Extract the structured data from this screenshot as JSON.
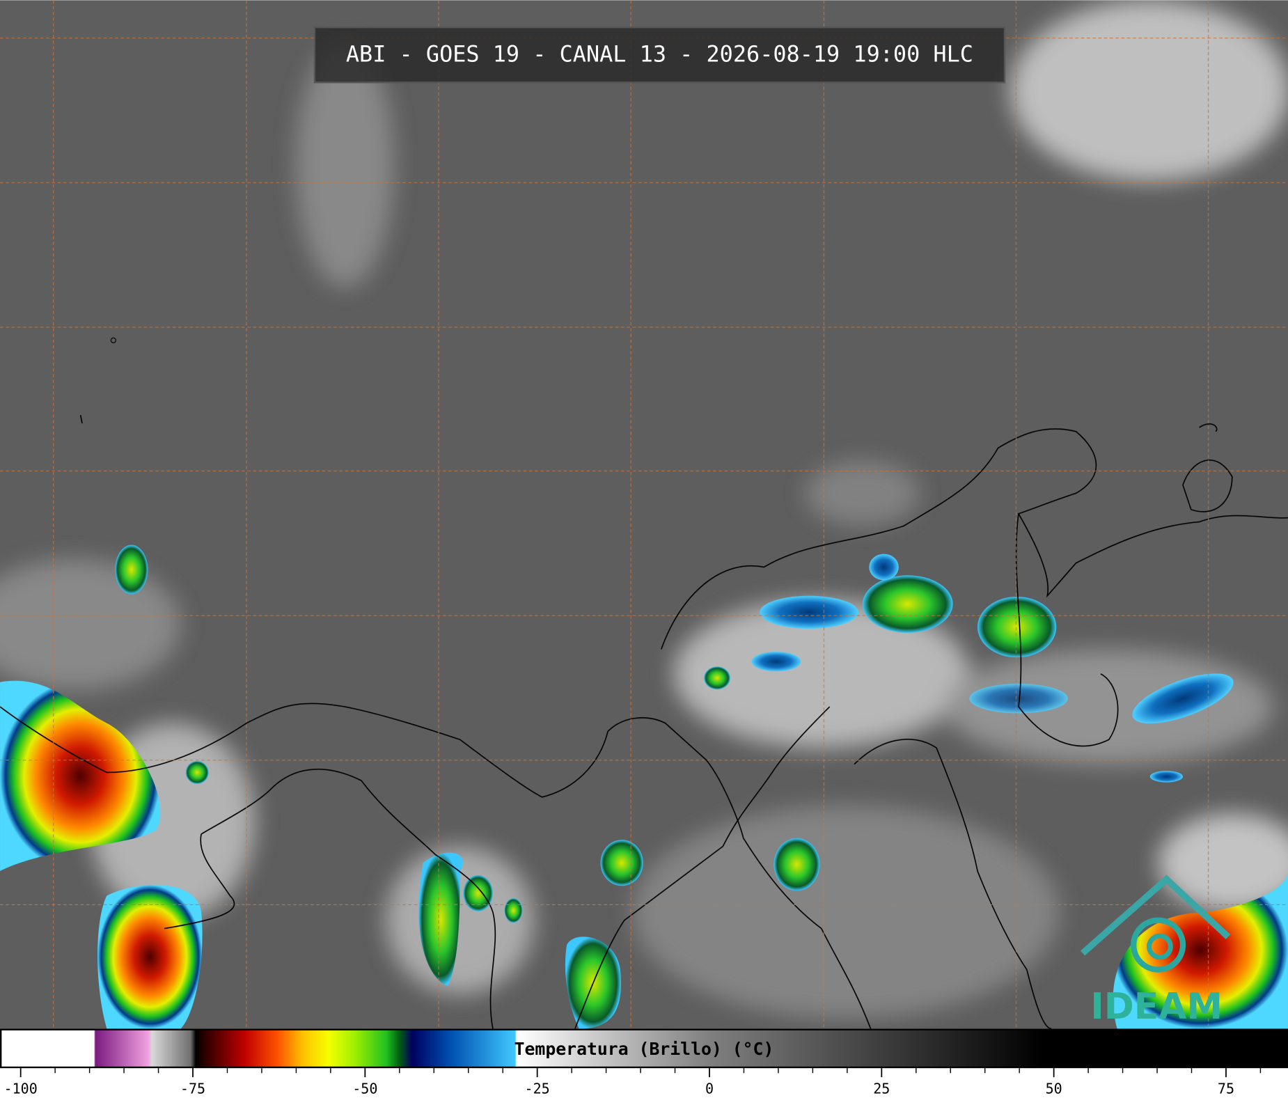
{
  "title": "ABI - GOES 19 - CANAL 13 - 2026-08-19 19:00 HLC",
  "colorbar": {
    "label": "Temperatura (Brillo) (°C)",
    "xlim": [
      -103,
      84
    ],
    "ticks": [
      -100,
      -75,
      -50,
      -25,
      0,
      25,
      50,
      75
    ],
    "minor_ticks": [
      -95,
      -90,
      -85,
      -80,
      -70,
      -65,
      -60,
      -55,
      -45,
      -40,
      -35,
      -30,
      -20,
      -15,
      -10,
      -5,
      5,
      10,
      15,
      20,
      30,
      35,
      40,
      45,
      55,
      60,
      65,
      70,
      80
    ]
  },
  "logo": "IDEAM"
}
